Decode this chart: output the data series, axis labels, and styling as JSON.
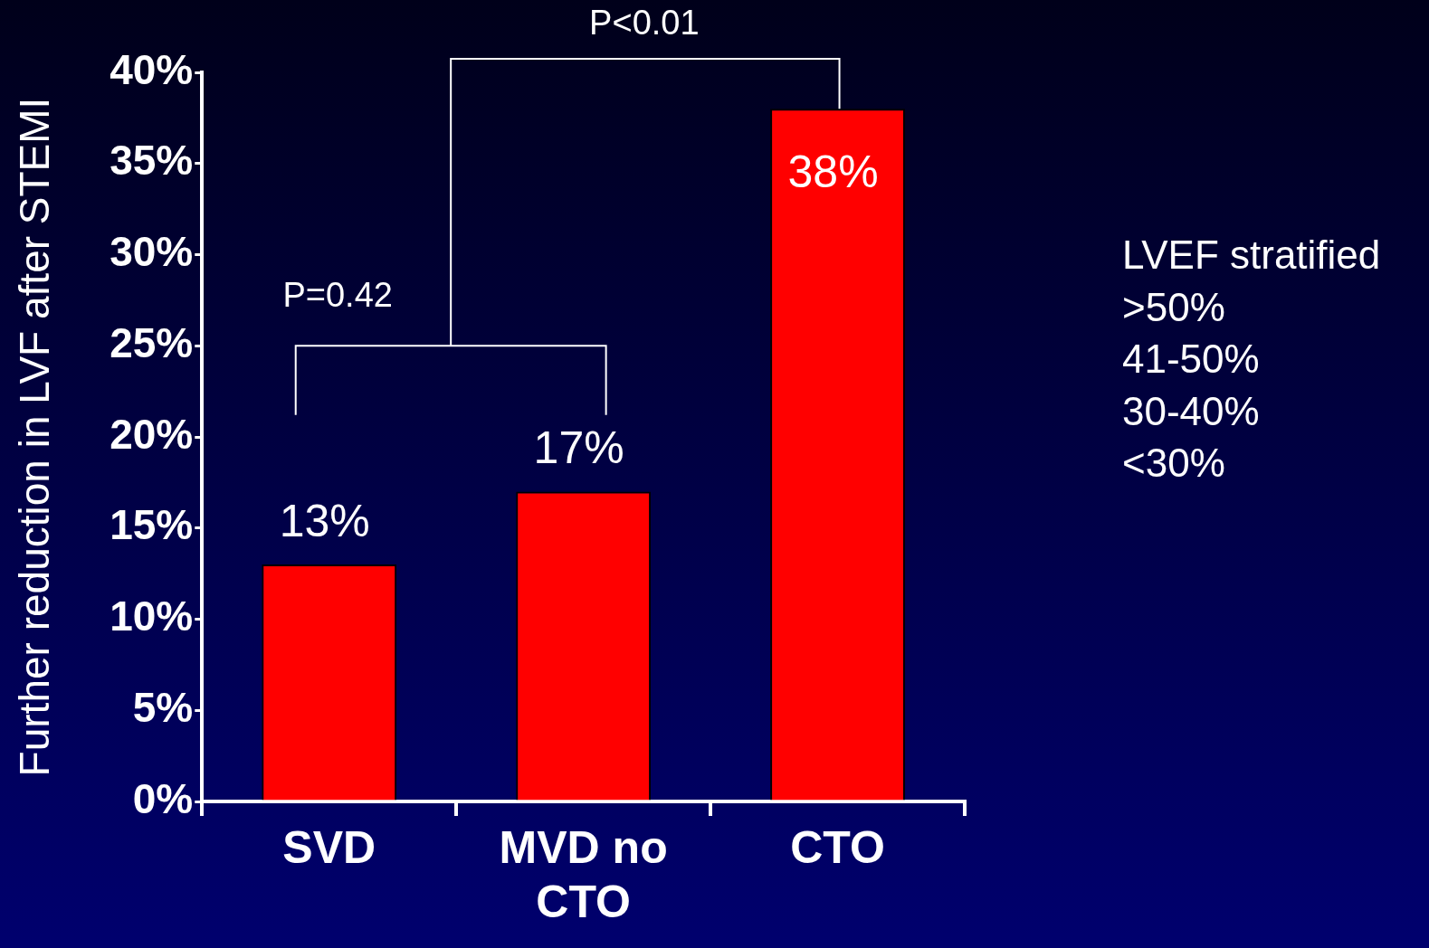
{
  "chart_data": {
    "type": "bar",
    "ylabel": "Further reduction in LVF after STEMI",
    "categories": [
      "SVD",
      "MVD no CTO",
      "CTO"
    ],
    "values": [
      13,
      17,
      38
    ],
    "color": "#ff0000",
    "value_labels": [
      "13%",
      "17%",
      "38%"
    ],
    "ylim": [
      0,
      40
    ],
    "yticks": [
      {
        "value": 0,
        "label": "0%"
      },
      {
        "value": 5,
        "label": "5%"
      },
      {
        "value": 10,
        "label": "10%"
      },
      {
        "value": 15,
        "label": "15%"
      },
      {
        "value": 20,
        "label": "20%"
      },
      {
        "value": 25,
        "label": "25%"
      },
      {
        "value": 30,
        "label": "30%"
      },
      {
        "value": 35,
        "label": "35%"
      },
      {
        "value": 40,
        "label": "40%"
      }
    ],
    "annotations": [
      "P=0.42",
      "P<0.01",
      "LVEF stratified",
      ">50%",
      "41-50%",
      "30-40%",
      "<30%"
    ],
    "grid": false,
    "legend": false
  }
}
